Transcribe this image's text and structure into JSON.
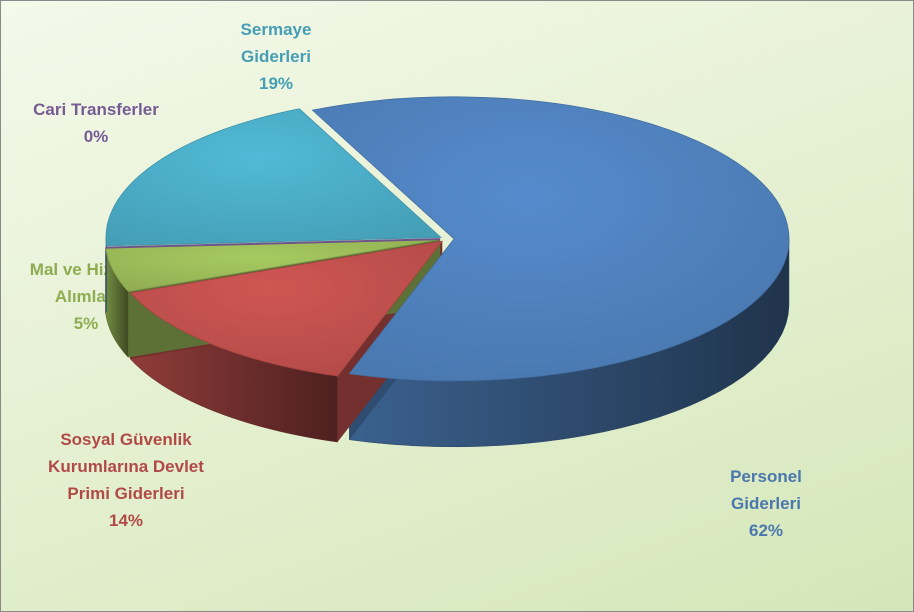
{
  "chart_data": {
    "type": "pie",
    "categories": [
      "Personel Giderleri",
      "Sosyal Güvenlik Kurumlarına Devlet Primi Giderleri",
      "Mal ve Hizmet Alımları",
      "Cari Transferler",
      "Sermaye Giderleri"
    ],
    "values": [
      62,
      14,
      5,
      0,
      19
    ],
    "value_labels": [
      "62%",
      "14%",
      "5%",
      "0%",
      "19%"
    ],
    "colors": [
      "#4f81bd",
      "#c0504d",
      "#9bbb59",
      "#8064a2",
      "#4bacc6"
    ],
    "label_colors": [
      "#4f81bd",
      "#c0504d",
      "#9bbb59",
      "#8064a2",
      "#4bacc6"
    ]
  }
}
